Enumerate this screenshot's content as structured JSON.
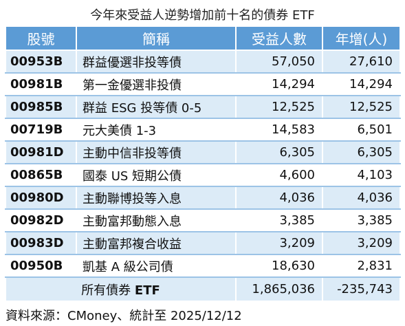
{
  "title": "今年來受益人逆勢增加前十名的債券 ETF",
  "table": {
    "headers": [
      "股號",
      "簡稱",
      "受益人數",
      "年增(人)"
    ],
    "rows": [
      {
        "code": "00953B",
        "name": "群益優選非投等債",
        "holders": "57,050",
        "yoy": "27,610"
      },
      {
        "code": "00981B",
        "name": "第一金優選非投債",
        "holders": "14,294",
        "yoy": "14,294"
      },
      {
        "code": "00985B",
        "name": "群益 ESG 投等債 0-5",
        "holders": "12,525",
        "yoy": "12,525"
      },
      {
        "code": "00719B",
        "name": "元大美債 1-3",
        "holders": "14,583",
        "yoy": "6,501"
      },
      {
        "code": "00981D",
        "name": "主動中信非投等債",
        "holders": "6,305",
        "yoy": "6,305"
      },
      {
        "code": "00865B",
        "name": "國泰 US 短期公債",
        "holders": "4,600",
        "yoy": "4,103"
      },
      {
        "code": "00980D",
        "name": "主動聯博投等入息",
        "holders": "4,036",
        "yoy": "4,036"
      },
      {
        "code": "00982D",
        "name": "主動富邦動態入息",
        "holders": "3,385",
        "yoy": "3,385"
      },
      {
        "code": "00983D",
        "name": "主動富邦複合收益",
        "holders": "3,209",
        "yoy": "3,209"
      },
      {
        "code": "00950B",
        "name": "凱基 A 級公司債",
        "holders": "18,630",
        "yoy": "2,831"
      }
    ],
    "total": {
      "label": "所有債券",
      "label_suffix": "ETF",
      "holders": "1,865,036",
      "yoy": "-235,743"
    }
  },
  "source": "資料來源：CMoney、統計至 2025/12/12",
  "colors": {
    "header": "#5b9bd5",
    "band": "#dcebf7",
    "rule": "#9cc3e6"
  }
}
